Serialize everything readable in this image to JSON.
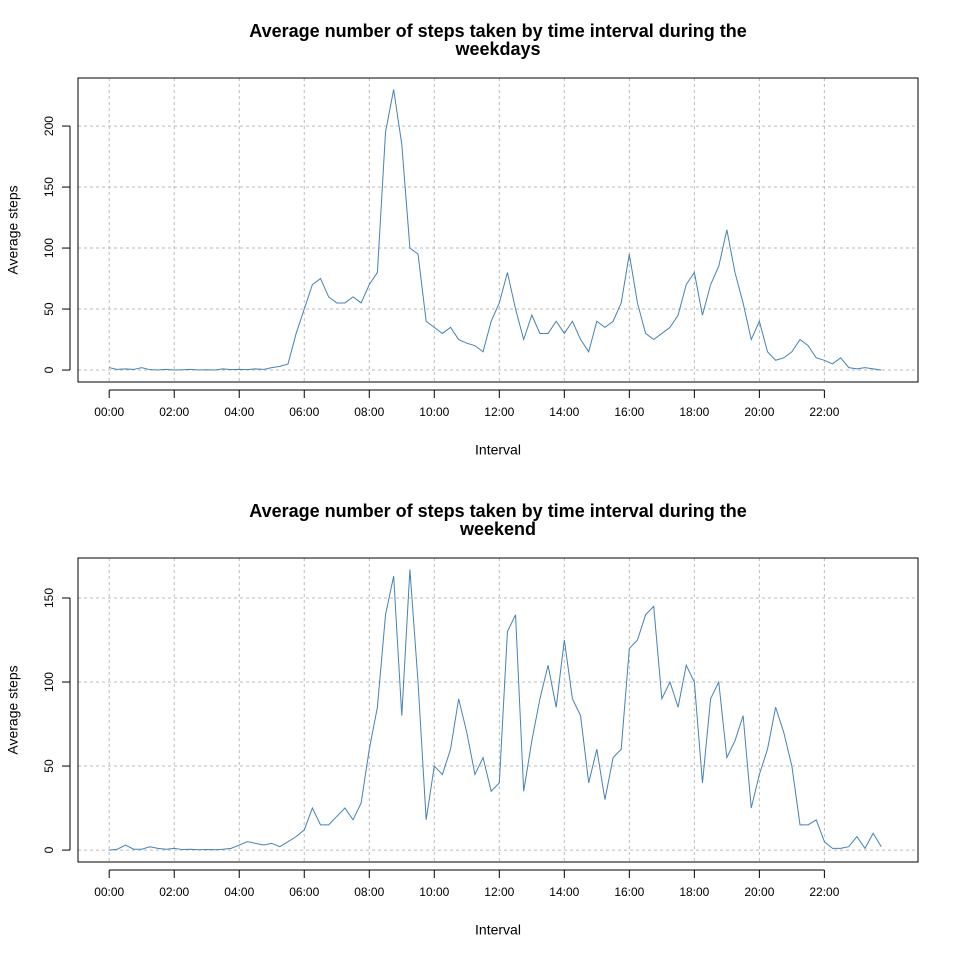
{
  "chart_data": [
    {
      "type": "line",
      "title": "Average number of steps taken by time interval during the weekdays",
      "xlabel": "Interval",
      "ylabel": "Average steps",
      "x": [
        0,
        0.25,
        0.5,
        0.75,
        1,
        1.25,
        1.5,
        1.75,
        2,
        2.25,
        2.5,
        2.75,
        3,
        3.25,
        3.5,
        3.75,
        4,
        4.25,
        4.5,
        4.75,
        5,
        5.25,
        5.5,
        5.75,
        6,
        6.25,
        6.5,
        6.75,
        7,
        7.25,
        7.5,
        7.75,
        8,
        8.25,
        8.5,
        8.75,
        9,
        9.25,
        9.5,
        9.75,
        10,
        10.25,
        10.5,
        10.75,
        11,
        11.25,
        11.5,
        11.75,
        12,
        12.25,
        12.5,
        12.75,
        13,
        13.25,
        13.5,
        13.75,
        14,
        14.25,
        14.5,
        14.75,
        15,
        15.25,
        15.5,
        15.75,
        16,
        16.25,
        16.5,
        16.75,
        17,
        17.25,
        17.5,
        17.75,
        18,
        18.25,
        18.5,
        18.75,
        19,
        19.25,
        19.5,
        19.75,
        20,
        20.25,
        20.5,
        20.75,
        21,
        21.25,
        21.5,
        21.75,
        22,
        22.25,
        22.5,
        22.75,
        23,
        23.25,
        23.5,
        23.75
      ],
      "series": [
        {
          "name": "weekdays",
          "color": "#4682b4",
          "values": [
            2,
            0.5,
            1,
            0.5,
            2,
            0.3,
            0,
            0.5,
            0,
            0.2,
            0.5,
            0,
            0.2,
            0,
            1,
            0.3,
            0.5,
            0.3,
            1,
            0.5,
            2,
            3,
            5,
            30,
            50,
            70,
            75,
            60,
            55,
            55,
            60,
            55,
            70,
            80,
            195,
            230,
            185,
            100,
            95,
            40,
            35,
            30,
            35,
            25,
            22,
            20,
            15,
            40,
            55,
            80,
            50,
            25,
            45,
            30,
            30,
            40,
            30,
            40,
            25,
            15,
            40,
            35,
            40,
            55,
            95,
            55,
            30,
            25,
            30,
            35,
            45,
            70,
            80,
            45,
            70,
            85,
            115,
            80,
            55,
            25,
            40,
            15,
            8,
            10,
            15,
            25,
            20,
            10,
            8,
            5,
            10,
            2,
            1,
            2,
            1,
            0
          ]
        }
      ],
      "xlim": [
        -0.96,
        24.88
      ],
      "ylim": [
        -9.8,
        239.4
      ],
      "xticks": [
        {
          "value": 0,
          "label": "00:00"
        },
        {
          "value": 2,
          "label": "02:00"
        },
        {
          "value": 4,
          "label": "04:00"
        },
        {
          "value": 6,
          "label": "06:00"
        },
        {
          "value": 8,
          "label": "08:00"
        },
        {
          "value": 10,
          "label": "10:00"
        },
        {
          "value": 12,
          "label": "12:00"
        },
        {
          "value": 14,
          "label": "14:00"
        },
        {
          "value": 16,
          "label": "16:00"
        },
        {
          "value": 18,
          "label": "18:00"
        },
        {
          "value": 20,
          "label": "20:00"
        },
        {
          "value": 22,
          "label": "22:00"
        }
      ],
      "yticks": [
        0,
        50,
        100,
        150,
        200
      ],
      "grid": true
    },
    {
      "type": "line",
      "title": "Average number of steps taken by time interval during the weekend",
      "xlabel": "Interval",
      "ylabel": "Average steps",
      "x": [
        0,
        0.25,
        0.5,
        0.75,
        1,
        1.25,
        1.5,
        1.75,
        2,
        2.25,
        2.5,
        2.75,
        3,
        3.25,
        3.5,
        3.75,
        4,
        4.25,
        4.5,
        4.75,
        5,
        5.25,
        5.5,
        5.75,
        6,
        6.25,
        6.5,
        6.75,
        7,
        7.25,
        7.5,
        7.75,
        8,
        8.25,
        8.5,
        8.75,
        9,
        9.25,
        9.5,
        9.75,
        10,
        10.25,
        10.5,
        10.75,
        11,
        11.25,
        11.5,
        11.75,
        12,
        12.25,
        12.5,
        12.75,
        13,
        13.25,
        13.5,
        13.75,
        14,
        14.25,
        14.5,
        14.75,
        15,
        15.25,
        15.5,
        15.75,
        16,
        16.25,
        16.5,
        16.75,
        17,
        17.25,
        17.5,
        17.75,
        18,
        18.25,
        18.5,
        18.75,
        19,
        19.25,
        19.5,
        19.75,
        20,
        20.25,
        20.5,
        20.75,
        21,
        21.25,
        21.5,
        21.75,
        22,
        22.25,
        22.5,
        22.75,
        23,
        23.25,
        23.5,
        23.75
      ],
      "series": [
        {
          "name": "weekend",
          "color": "#4682b4",
          "values": [
            0,
            0.5,
            3,
            0.5,
            0.5,
            2,
            1,
            0.5,
            1,
            0.3,
            0.5,
            0.2,
            0.3,
            0.2,
            0.5,
            1,
            3,
            5,
            4,
            3,
            4,
            2,
            5,
            8,
            12,
            25,
            15,
            15,
            20,
            25,
            18,
            28,
            60,
            85,
            140,
            163,
            80,
            167,
            100,
            18,
            50,
            45,
            60,
            90,
            70,
            45,
            55,
            35,
            40,
            130,
            140,
            35,
            65,
            90,
            110,
            85,
            125,
            90,
            80,
            40,
            60,
            30,
            55,
            60,
            120,
            125,
            140,
            145,
            90,
            100,
            85,
            110,
            100,
            40,
            90,
            100,
            55,
            65,
            80,
            25,
            45,
            60,
            85,
            70,
            50,
            15,
            15,
            18,
            5,
            1,
            1,
            2,
            8,
            1,
            10,
            2
          ]
        }
      ],
      "xlim": [
        -0.96,
        24.88
      ],
      "ylim": [
        -7.1,
        173.8
      ],
      "xticks": [
        {
          "value": 0,
          "label": "00:00"
        },
        {
          "value": 2,
          "label": "02:00"
        },
        {
          "value": 4,
          "label": "04:00"
        },
        {
          "value": 6,
          "label": "06:00"
        },
        {
          "value": 8,
          "label": "08:00"
        },
        {
          "value": 10,
          "label": "10:00"
        },
        {
          "value": 12,
          "label": "12:00"
        },
        {
          "value": 14,
          "label": "14:00"
        },
        {
          "value": 16,
          "label": "16:00"
        },
        {
          "value": 18,
          "label": "18:00"
        },
        {
          "value": 20,
          "label": "20:00"
        },
        {
          "value": 22,
          "label": "22:00"
        }
      ],
      "yticks": [
        0,
        50,
        100,
        150
      ],
      "grid": true
    }
  ]
}
